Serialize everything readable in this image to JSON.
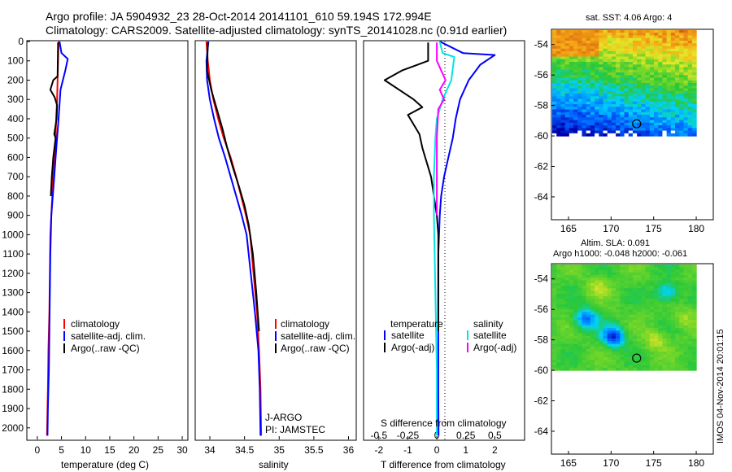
{
  "header": {
    "line1": "Argo profile: JA 5904932_23 28-Oct-2014 20141101_610 59.194S 172.994E",
    "line2": "Climatology: CARS2009. Satellite-adjusted climatology: synTS_20141028.nc (0.91d earlier)"
  },
  "footer": {
    "credit": "IMOS 04-Nov-2014 20:01:15"
  },
  "colors": {
    "climatology": "#ff0000",
    "satellite": "#0000ff",
    "argo": "#000000",
    "sat_salinity": "#00e5e5",
    "argo_salinity": "#ff00ff"
  },
  "chart_data": [
    {
      "type": "line",
      "id": "temperature",
      "xlabel": "temperature (deg C)",
      "ylabel": "",
      "xlim": [
        -2,
        31
      ],
      "ylim": [
        2060,
        0
      ],
      "xticks": [
        0,
        5,
        10,
        15,
        20,
        25,
        30
      ],
      "yticks": [
        0,
        100,
        200,
        300,
        400,
        500,
        600,
        700,
        800,
        900,
        1000,
        1100,
        1200,
        1300,
        1400,
        1500,
        1600,
        1700,
        1800,
        1900,
        2000
      ],
      "legend": [
        "climatology",
        "satellite-adj. clim.",
        "Argo(..raw -QC)"
      ],
      "series": [
        {
          "name": "climatology",
          "color": "#ff0000",
          "x": [
            4.4,
            4.3,
            4.2,
            4.1,
            3.9,
            3.8,
            3.6,
            3.3,
            3.1,
            2.9,
            2.7,
            2.6,
            2.5,
            2.4,
            2.3,
            2.2,
            2.1,
            2.0
          ],
          "y": [
            0,
            100,
            200,
            300,
            400,
            500,
            600,
            700,
            800,
            900,
            1000,
            1200,
            1400,
            1500,
            1600,
            1800,
            1900,
            2040
          ]
        },
        {
          "name": "satellite-adj. clim.",
          "color": "#0000ff",
          "x": [
            4.6,
            5.0,
            6.3,
            5.8,
            4.8,
            4.4,
            4.1,
            3.8,
            3.5,
            3.2,
            2.9,
            2.7,
            2.6,
            2.5,
            2.4,
            2.3,
            2.2,
            2.1
          ],
          "y": [
            0,
            60,
            90,
            150,
            250,
            400,
            500,
            600,
            700,
            800,
            900,
            1100,
            1300,
            1500,
            1700,
            1800,
            1900,
            2040
          ]
        },
        {
          "name": "Argo(..raw -QC)",
          "color": "#000000",
          "x": [
            4.3,
            4.2,
            3.3,
            2.7,
            3.6,
            4.1,
            4.0,
            3.5,
            3.8,
            3.3,
            3.0,
            2.8
          ],
          "y": [
            5,
            180,
            200,
            250,
            290,
            330,
            400,
            480,
            500,
            600,
            700,
            800
          ]
        }
      ]
    },
    {
      "type": "line",
      "id": "salinity",
      "xlabel": "salinity",
      "ylabel": "",
      "xlim": [
        33.8,
        36.1
      ],
      "ylim": [
        2060,
        0
      ],
      "xticks": [
        34,
        34.5,
        35,
        35.5,
        36
      ],
      "legend": [
        "climatology",
        "satellite-adj. clim.",
        "Argo(..raw -QC)"
      ],
      "annotation": [
        "J-ARGO",
        "PI: JAMSTEC"
      ],
      "series": [
        {
          "name": "climatology",
          "color": "#ff0000",
          "x": [
            33.95,
            33.97,
            34.0,
            34.05,
            34.12,
            34.2,
            34.3,
            34.38,
            34.45,
            34.52,
            34.58,
            34.63,
            34.68,
            34.71,
            34.73,
            34.74
          ],
          "y": [
            0,
            100,
            200,
            300,
            400,
            500,
            600,
            700,
            800,
            900,
            1000,
            1200,
            1400,
            1600,
            1800,
            2040
          ]
        },
        {
          "name": "satellite-adj. clim.",
          "color": "#0000ff",
          "x": [
            33.98,
            33.95,
            33.96,
            34.0,
            34.06,
            34.13,
            34.22,
            34.3,
            34.38,
            34.46,
            34.53,
            34.59,
            34.65,
            34.7,
            34.72,
            34.73
          ],
          "y": [
            0,
            100,
            200,
            300,
            400,
            500,
            600,
            700,
            800,
            900,
            1000,
            1200,
            1400,
            1600,
            1800,
            2040
          ]
        },
        {
          "name": "Argo(..raw -QC)",
          "color": "#000000",
          "x": [
            33.97,
            33.96,
            34.02,
            34.1,
            34.18,
            34.25,
            34.33,
            34.42,
            34.5,
            34.56,
            34.62,
            34.67,
            34.71
          ],
          "y": [
            5,
            150,
            250,
            350,
            450,
            550,
            650,
            750,
            850,
            950,
            1100,
            1300,
            1500
          ]
        }
      ]
    },
    {
      "type": "line",
      "id": "difference",
      "xlabel": "T difference from climatology",
      "xlabel_top": "S difference from climatology",
      "xlim_T": [
        -2.5,
        3.0
      ],
      "xticks_T": [
        -2,
        -1,
        0,
        1,
        2
      ],
      "xticks_S": [
        -0.5,
        -0.25,
        0,
        0.25,
        0.5
      ],
      "ylim": [
        2060,
        0
      ],
      "legend": {
        "temperature_header": "temperature",
        "salinity_header": "salinity",
        "temperature": [
          "satellite",
          "Argo(-adj)"
        ],
        "salinity": [
          "satellite",
          "Argo(-adj)"
        ]
      },
      "series": [
        {
          "name": "temperature satellite",
          "color": "#0000ff",
          "x_T": [
            0.1,
            0.9,
            2.0,
            1.5,
            1.1,
            0.8,
            0.65,
            0.55,
            0.4,
            0.25,
            0.15,
            0.1,
            0.05,
            0.05,
            0.05,
            0.05,
            0.06
          ],
          "y": [
            0,
            60,
            70,
            120,
            200,
            300,
            400,
            500,
            600,
            700,
            800,
            900,
            1100,
            1300,
            1500,
            1800,
            2040
          ]
        },
        {
          "name": "temperature Argo(-adj)",
          "color": "#000000",
          "x_T": [
            -0.3,
            -0.3,
            -1.2,
            -1.8,
            -1.2,
            -0.8,
            -0.5,
            -1.0,
            -0.6,
            -0.5,
            -0.4,
            -0.2,
            -0.1,
            0.0,
            0.05,
            0.05,
            0.05
          ],
          "y": [
            5,
            100,
            150,
            200,
            260,
            300,
            340,
            380,
            480,
            550,
            600,
            700,
            800,
            900,
            1000,
            1200,
            1500
          ]
        },
        {
          "name": "salinity satellite",
          "color": "#00e5e5",
          "x_T": [
            0.1,
            0.2,
            0.6,
            0.5,
            0.2,
            0.0,
            -0.05,
            -0.1,
            -0.1,
            -0.05,
            0.0,
            0.0
          ],
          "y": [
            0,
            60,
            80,
            200,
            300,
            400,
            500,
            700,
            900,
            1300,
            1700,
            2040
          ]
        },
        {
          "name": "salinity Argo(-adj)",
          "color": "#ff00ff",
          "x_T": [
            0.0,
            0.0,
            0.3,
            0.1,
            0.25,
            0.05,
            0.0,
            0.0,
            0.0
          ],
          "y": [
            5,
            100,
            200,
            250,
            300,
            350,
            500,
            700,
            900
          ]
        }
      ]
    }
  ],
  "maps": [
    {
      "title": "sat. SST: 4.06 Argo: 4",
      "title2": "",
      "xlim": [
        163,
        182
      ],
      "ylim": [
        -65.5,
        -53
      ],
      "xticks": [
        165,
        170,
        175,
        180
      ],
      "yticks": [
        -54,
        -56,
        -58,
        -60,
        -62,
        -64
      ],
      "marker": {
        "lon": 173,
        "lat": -59.2
      }
    },
    {
      "title": "Altim. SLA: 0.091",
      "title2": "Argo h1000: -0.048 h2000: -0.061",
      "xlim": [
        163,
        182
      ],
      "ylim": [
        -65.5,
        -53
      ],
      "xticks": [
        165,
        170,
        175,
        180
      ],
      "yticks": [
        -54,
        -56,
        -58,
        -60,
        -62,
        -64
      ],
      "marker": {
        "lon": 173,
        "lat": -59.2
      }
    }
  ]
}
